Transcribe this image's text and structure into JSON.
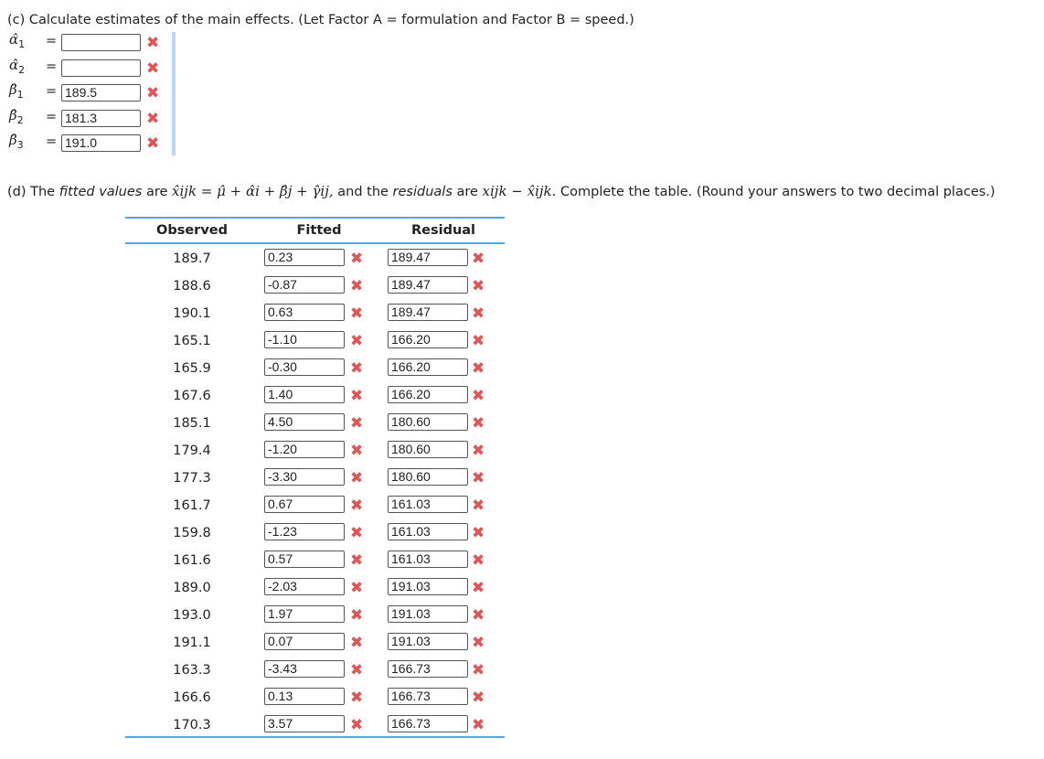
{
  "part_c": {
    "prompt": "(c) Calculate estimates of the main effects. (Let Factor A = formulation and Factor B = speed.)",
    "estimates": [
      {
        "symbol": "α̂",
        "sub": "1",
        "value": "",
        "status": "incorrect"
      },
      {
        "symbol": "α̂",
        "sub": "2",
        "value": "",
        "status": "incorrect"
      },
      {
        "symbol": "β̂",
        "sub": "1",
        "value": "189.5",
        "status": "incorrect"
      },
      {
        "symbol": "β̂",
        "sub": "2",
        "value": "181.3",
        "status": "incorrect"
      },
      {
        "symbol": "β̂",
        "sub": "3",
        "value": "191.0",
        "status": "incorrect"
      }
    ]
  },
  "part_d": {
    "prefix": "(d) The ",
    "fitted_word": "fitted values",
    "are": " are ",
    "formula_fitted": "x̂ijk = μ̂ + α̂i + β̂j + γ̂ij,",
    "middle": " and the ",
    "residuals_word": "residuals",
    "are2": " are ",
    "formula_resid": "xijk − x̂ijk.",
    "suffix": " Complete the table. (Round your answers to two decimal places.)",
    "headers": [
      "Observed",
      "Fitted",
      "Residual"
    ],
    "rows": [
      {
        "observed": "189.7",
        "fitted": "0.23",
        "residual": "189.47"
      },
      {
        "observed": "188.6",
        "fitted": "-0.87",
        "residual": "189.47"
      },
      {
        "observed": "190.1",
        "fitted": "0.63",
        "residual": "189.47"
      },
      {
        "observed": "165.1",
        "fitted": "-1.10",
        "residual": "166.20"
      },
      {
        "observed": "165.9",
        "fitted": "-0.30",
        "residual": "166.20"
      },
      {
        "observed": "167.6",
        "fitted": "1.40",
        "residual": "166.20"
      },
      {
        "observed": "185.1",
        "fitted": "4.50",
        "residual": "180.60"
      },
      {
        "observed": "179.4",
        "fitted": "-1.20",
        "residual": "180.60"
      },
      {
        "observed": "177.3",
        "fitted": "-3.30",
        "residual": "180.60"
      },
      {
        "observed": "161.7",
        "fitted": "0.67",
        "residual": "161.03"
      },
      {
        "observed": "159.8",
        "fitted": "-1.23",
        "residual": "161.03"
      },
      {
        "observed": "161.6",
        "fitted": "0.57",
        "residual": "161.03"
      },
      {
        "observed": "189.0",
        "fitted": "-2.03",
        "residual": "191.03"
      },
      {
        "observed": "193.0",
        "fitted": "1.97",
        "residual": "191.03"
      },
      {
        "observed": "191.1",
        "fitted": "0.07",
        "residual": "191.03"
      },
      {
        "observed": "163.3",
        "fitted": "-3.43",
        "residual": "166.73"
      },
      {
        "observed": "166.6",
        "fitted": "0.13",
        "residual": "166.73"
      },
      {
        "observed": "170.3",
        "fitted": "3.57",
        "residual": "166.73"
      }
    ]
  },
  "icons": {
    "incorrect": "red-x-icon",
    "incorrect_glyph": "✖"
  },
  "colors": {
    "incorrect": "#e05555",
    "table_rule": "#5aa5de",
    "focus_bar": "#bcd6f7"
  }
}
